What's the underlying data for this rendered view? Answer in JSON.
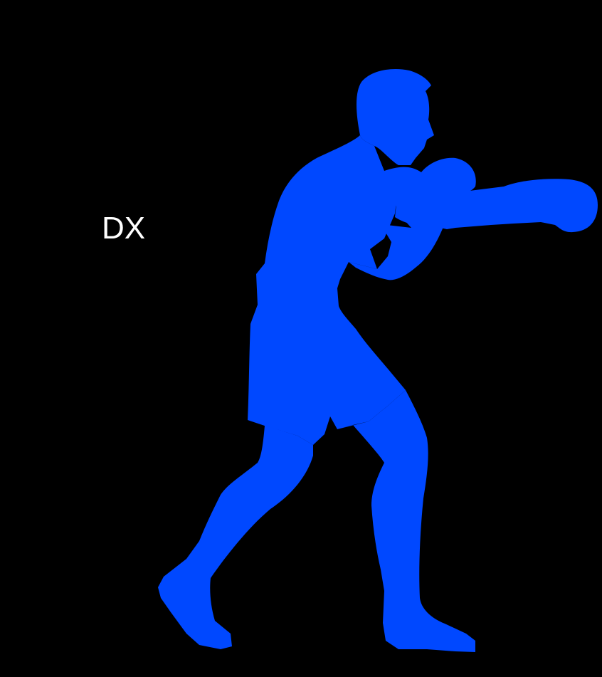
{
  "label": {
    "text": "DX"
  },
  "colors": {
    "background": "#000000",
    "silhouette": "#0048FF",
    "label": "#FFFFFF"
  },
  "figure": {
    "icon": "boxer-silhouette-icon"
  }
}
